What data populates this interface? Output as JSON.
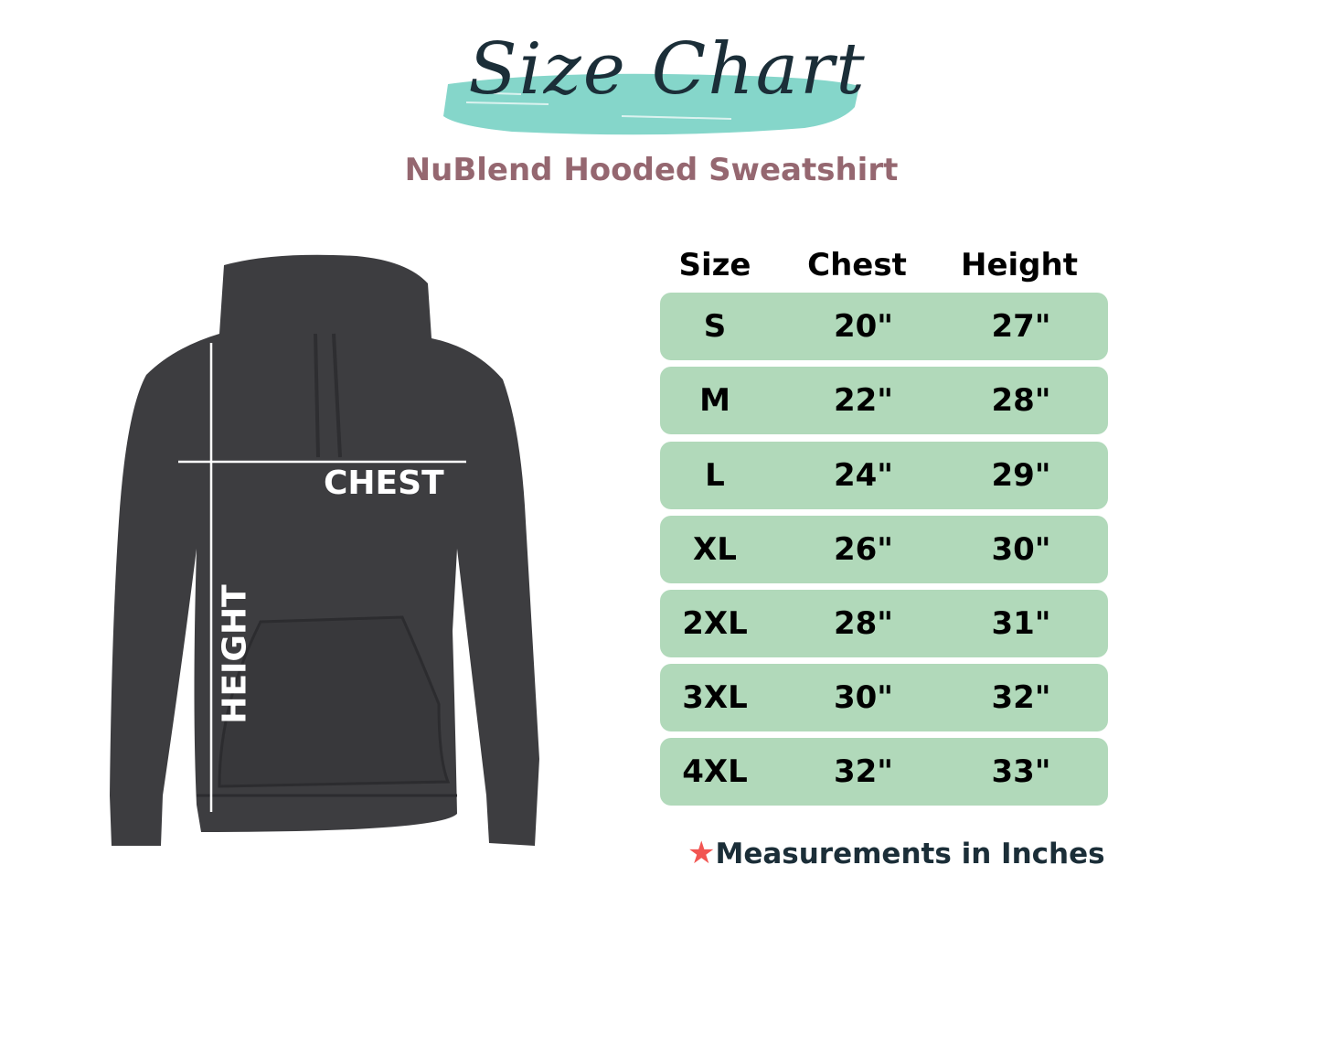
{
  "header": {
    "title": "Size Chart",
    "subtitle": "NuBlend Hooded Sweatshirt"
  },
  "diagram": {
    "chest_label": "CHEST",
    "height_label": "HEIGHT"
  },
  "table": {
    "columns": [
      "Size",
      "Chest",
      "Height"
    ],
    "rows": [
      [
        "S",
        "20\"",
        "27\""
      ],
      [
        "M",
        "22\"",
        "28\""
      ],
      [
        "L",
        "24\"",
        "29\""
      ],
      [
        "XL",
        "26\"",
        "30\""
      ],
      [
        "2XL",
        "28\"",
        "31\""
      ],
      [
        "3XL",
        "30\"",
        "32\""
      ],
      [
        "4XL",
        "32\"",
        "33\""
      ]
    ]
  },
  "footer": {
    "note": "Measurements in Inches",
    "icon": "star-icon"
  },
  "colors": {
    "brush": "#85d6ca",
    "title": "#1b2e38",
    "subtitle": "#956770",
    "row_bg": "#b1d9ba",
    "hoodie": "#3d3d40",
    "star": "#f25552"
  }
}
